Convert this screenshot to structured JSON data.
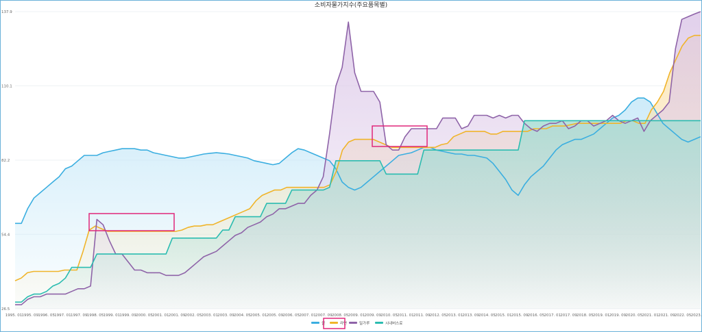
{
  "chart_data": {
    "type": "area",
    "title": "소비자물가지수(주요품목별)",
    "ylim": [
      26.5,
      137.9
    ],
    "yticks": [
      "26.5",
      "54.4",
      "82.2",
      "110.1",
      "137.9"
    ],
    "ytick_values": [
      26.5,
      54.4,
      82.2,
      110.1,
      137.9
    ],
    "grid": true,
    "legend_position": "bottom-center",
    "xticks": [
      "1995. 01",
      "1995. 09",
      "1996. 05",
      "1997. 01",
      "1997. 09",
      "1998. 05",
      "1999. 01",
      "1999. 09",
      "2000. 05",
      "2001. 01",
      "2001. 09",
      "2002. 05",
      "2003. 01",
      "2003. 09",
      "2004. 05",
      "2005. 01",
      "2005. 09",
      "2006. 05",
      "2007. 01",
      "2007. 09",
      "2008. 05",
      "2009. 01",
      "2009. 09",
      "2010. 05",
      "2011. 01",
      "2011. 09",
      "2012. 05",
      "2013. 01",
      "2013. 09",
      "2014. 05",
      "2015. 01",
      "2015. 09",
      "2016. 05",
      "2017. 01",
      "2017. 09",
      "2018. 05",
      "2019. 01",
      "2019. 09",
      "2020. 05",
      "2021. 01",
      "2021. 09",
      "2022. 05",
      "2023. 01"
    ],
    "series": [
      {
        "name": "쌀",
        "color": "#3aaee0",
        "fill": "#c6e8f8",
        "values": [
          58.5,
          58.5,
          64,
          68,
          70,
          72,
          74,
          76,
          79,
          80,
          82,
          84,
          84,
          84,
          85,
          85.5,
          86,
          86.5,
          86.5,
          86.5,
          86,
          86,
          85,
          84.5,
          84,
          83.5,
          83,
          83,
          83.5,
          84,
          84.5,
          84.8,
          85,
          84.8,
          84.5,
          84,
          83.5,
          83,
          82,
          81.5,
          81,
          80.5,
          81,
          83,
          85,
          86.5,
          86,
          85,
          84,
          83,
          82,
          79,
          74,
          72,
          71,
          72,
          74,
          76,
          78,
          80,
          82,
          84,
          84.5,
          85,
          86,
          87,
          87,
          86,
          85.5,
          85,
          84.5,
          84.5,
          84,
          84,
          83.5,
          83,
          81,
          78,
          75,
          71,
          69,
          73,
          76,
          78,
          80,
          83,
          86,
          88,
          89,
          90,
          90,
          91,
          92,
          94,
          96,
          98,
          99,
          101,
          104,
          105.5,
          105.5,
          104,
          100,
          96,
          94,
          92,
          90,
          89,
          90,
          91
        ]
      },
      {
        "name": "라면",
        "color": "#f0b429",
        "fill": "#fbe3b0",
        "values": [
          37,
          38,
          40,
          40.5,
          40.5,
          40.5,
          40.5,
          40.5,
          41,
          41,
          41,
          48,
          56,
          57.5,
          56.5,
          55.5,
          55.5,
          55.5,
          55.5,
          55.5,
          55.5,
          55.5,
          55.5,
          55.5,
          55.5,
          55.5,
          55.5,
          56,
          57,
          57.5,
          57.5,
          58,
          58,
          59,
          60,
          61,
          62,
          63,
          64,
          67,
          69,
          70,
          71,
          71,
          72,
          72,
          72,
          72,
          72,
          72,
          72,
          73,
          78,
          86,
          89,
          90,
          90,
          90,
          90,
          89,
          88,
          87,
          87,
          87,
          87,
          87,
          87,
          87,
          87,
          88,
          88.5,
          91,
          92,
          93,
          93,
          93,
          93,
          92,
          92,
          93,
          93,
          93,
          93,
          93,
          94,
          94,
          94,
          95,
          95,
          95,
          95.5,
          96,
          96,
          96,
          96,
          96,
          96,
          96,
          96,
          97,
          97,
          96,
          96,
          101,
          104,
          108,
          115,
          120,
          125,
          128,
          129,
          129
        ]
      },
      {
        "name": "밀가루",
        "color": "#8e63a8",
        "fill": "#dcc8e8",
        "values": [
          28,
          28,
          30,
          31,
          31,
          32,
          32,
          32,
          32,
          33,
          34,
          34,
          35,
          60,
          58,
          52,
          47,
          47,
          44,
          41,
          41,
          40,
          40,
          40,
          39,
          39,
          39,
          40,
          42,
          44,
          46,
          47,
          48,
          50,
          52,
          54,
          55,
          57,
          58,
          59,
          61,
          62,
          64,
          64,
          65,
          66,
          66,
          69,
          71,
          76,
          92,
          110,
          117,
          134,
          115,
          108,
          108,
          108,
          104,
          88,
          86,
          86,
          91,
          94,
          94,
          94,
          94,
          94,
          98,
          98,
          98,
          94,
          95,
          99,
          99,
          99,
          98,
          99,
          98,
          99,
          99,
          96,
          94,
          93,
          95,
          96,
          96,
          97,
          94,
          95,
          97,
          97,
          95,
          96,
          97,
          99,
          97,
          96,
          97,
          98,
          93,
          97,
          99,
          101,
          104,
          124,
          135,
          136,
          137,
          137.9
        ]
      },
      {
        "name": "시내버스료",
        "color": "#2bbcb0",
        "fill": "#a8ddd4",
        "values": [
          29,
          29,
          31,
          32,
          32,
          33,
          35,
          36,
          38,
          42,
          42,
          42,
          42,
          47,
          47,
          47,
          47,
          47,
          47,
          47,
          47,
          47,
          47,
          47,
          47,
          53,
          53,
          53,
          53,
          53,
          53,
          53,
          53,
          56,
          56,
          61,
          61,
          61,
          61,
          61,
          66,
          66,
          66,
          66,
          71,
          71,
          71,
          71,
          71,
          71,
          72,
          82,
          82,
          82,
          82,
          82,
          82,
          82,
          82,
          77,
          77,
          77,
          77,
          77,
          77,
          86,
          86,
          86,
          86,
          86,
          86,
          86,
          86,
          86,
          86,
          86,
          86,
          86,
          86,
          86,
          86,
          97,
          97,
          97,
          97,
          97,
          97,
          97,
          97,
          97,
          97,
          97,
          97,
          97,
          97,
          97,
          97,
          97,
          97,
          97,
          97,
          97,
          97,
          97,
          97,
          97,
          97,
          97,
          97,
          97
        ]
      }
    ],
    "annotations": [
      {
        "shape": "rectangle",
        "color": "#e0267a",
        "around": "라면 1998-2001 plateau"
      },
      {
        "shape": "rectangle",
        "color": "#e0267a",
        "around": "밀가루/라면 2010-2011"
      },
      {
        "shape": "rectangle",
        "color": "#e0267a",
        "around": "legend 라면"
      }
    ]
  }
}
